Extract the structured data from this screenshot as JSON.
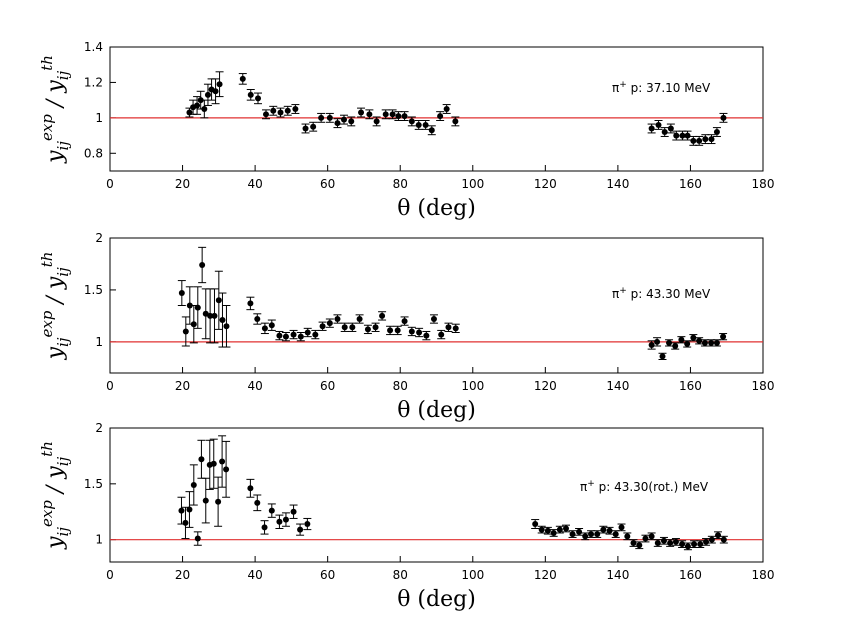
{
  "chart_data": [
    {
      "type": "scatter",
      "annotation": "π⁺ p: 37.10 MeV",
      "annotation_particle": "π",
      "annotation_charge": "+",
      "annotation_text": " p: 37.10 MeV",
      "xlabel_symbol": "θ",
      "xlabel_unit": "(deg)",
      "ylabel_num": "y",
      "ylabel_num_sup": "exp",
      "ylabel_den": "y",
      "ylabel_den_sup": "th",
      "ylabel_sub": "ij",
      "xlim": [
        0,
        180
      ],
      "ylim": [
        0.7,
        1.4
      ],
      "xticks": [
        0,
        20,
        40,
        60,
        80,
        100,
        120,
        140,
        160,
        180
      ],
      "yticks": [
        0.8,
        1,
        1.2,
        1.4
      ],
      "yticklabels": [
        "0.8",
        "1",
        "1.2",
        "1.4"
      ],
      "reference_line": 1.0,
      "reference_color": "#e03030",
      "points": [
        {
          "x": 21.9,
          "y": 1.03,
          "err": 0.025
        },
        {
          "x": 22.9,
          "y": 1.06,
          "err": 0.04
        },
        {
          "x": 24.0,
          "y": 1.07,
          "err": 0.05
        },
        {
          "x": 25.0,
          "y": 1.1,
          "err": 0.05
        },
        {
          "x": 26.0,
          "y": 1.05,
          "err": 0.05
        },
        {
          "x": 27.0,
          "y": 1.13,
          "err": 0.06
        },
        {
          "x": 28.0,
          "y": 1.16,
          "err": 0.06
        },
        {
          "x": 29.1,
          "y": 1.15,
          "err": 0.07
        },
        {
          "x": 30.2,
          "y": 1.19,
          "err": 0.07
        },
        {
          "x": 36.6,
          "y": 1.22,
          "err": 0.03
        },
        {
          "x": 38.8,
          "y": 1.13,
          "err": 0.03
        },
        {
          "x": 40.8,
          "y": 1.11,
          "err": 0.03
        },
        {
          "x": 43.0,
          "y": 1.02,
          "err": 0.025
        },
        {
          "x": 45.0,
          "y": 1.04,
          "err": 0.025
        },
        {
          "x": 47.0,
          "y": 1.03,
          "err": 0.025
        },
        {
          "x": 49.0,
          "y": 1.04,
          "err": 0.025
        },
        {
          "x": 51.1,
          "y": 1.05,
          "err": 0.025
        },
        {
          "x": 53.9,
          "y": 0.94,
          "err": 0.025
        },
        {
          "x": 56.0,
          "y": 0.95,
          "err": 0.025
        },
        {
          "x": 58.2,
          "y": 1.0,
          "err": 0.025
        },
        {
          "x": 60.6,
          "y": 1.0,
          "err": 0.025
        },
        {
          "x": 62.7,
          "y": 0.97,
          "err": 0.025
        },
        {
          "x": 64.5,
          "y": 0.99,
          "err": 0.025
        },
        {
          "x": 66.5,
          "y": 0.98,
          "err": 0.025
        },
        {
          "x": 69.2,
          "y": 1.03,
          "err": 0.025
        },
        {
          "x": 71.5,
          "y": 1.02,
          "err": 0.025
        },
        {
          "x": 73.5,
          "y": 0.98,
          "err": 0.025
        },
        {
          "x": 76.0,
          "y": 1.02,
          "err": 0.025
        },
        {
          "x": 77.9,
          "y": 1.02,
          "err": 0.025
        },
        {
          "x": 79.5,
          "y": 1.01,
          "err": 0.025
        },
        {
          "x": 81.2,
          "y": 1.01,
          "err": 0.025
        },
        {
          "x": 83.2,
          "y": 0.98,
          "err": 0.025
        },
        {
          "x": 85.1,
          "y": 0.96,
          "err": 0.025
        },
        {
          "x": 87.0,
          "y": 0.96,
          "err": 0.025
        },
        {
          "x": 88.7,
          "y": 0.93,
          "err": 0.025
        },
        {
          "x": 91.0,
          "y": 1.01,
          "err": 0.025
        },
        {
          "x": 92.8,
          "y": 1.05,
          "err": 0.025
        },
        {
          "x": 95.2,
          "y": 0.98,
          "err": 0.025
        },
        {
          "x": 149.3,
          "y": 0.94,
          "err": 0.025
        },
        {
          "x": 151.2,
          "y": 0.96,
          "err": 0.025
        },
        {
          "x": 152.9,
          "y": 0.92,
          "err": 0.025
        },
        {
          "x": 154.6,
          "y": 0.94,
          "err": 0.025
        },
        {
          "x": 156.1,
          "y": 0.9,
          "err": 0.025
        },
        {
          "x": 157.8,
          "y": 0.9,
          "err": 0.025
        },
        {
          "x": 159.2,
          "y": 0.9,
          "err": 0.025
        },
        {
          "x": 160.8,
          "y": 0.87,
          "err": 0.025
        },
        {
          "x": 162.4,
          "y": 0.87,
          "err": 0.025
        },
        {
          "x": 164.1,
          "y": 0.88,
          "err": 0.025
        },
        {
          "x": 165.8,
          "y": 0.88,
          "err": 0.025
        },
        {
          "x": 167.3,
          "y": 0.92,
          "err": 0.025
        },
        {
          "x": 169.1,
          "y": 1.0,
          "err": 0.025
        }
      ]
    },
    {
      "type": "scatter",
      "annotation": "π⁺ p: 43.30 MeV",
      "annotation_particle": "π",
      "annotation_charge": "+",
      "annotation_text": " p: 43.30 MeV",
      "xlabel_symbol": "θ",
      "xlabel_unit": "(deg)",
      "ylabel_num": "y",
      "ylabel_num_sup": "exp",
      "ylabel_den": "y",
      "ylabel_den_sup": "th",
      "ylabel_sub": "ij",
      "xlim": [
        0,
        180
      ],
      "ylim": [
        0.7,
        2.0
      ],
      "xticks": [
        0,
        20,
        40,
        60,
        80,
        100,
        120,
        140,
        160,
        180
      ],
      "yticks": [
        1,
        1.5,
        2
      ],
      "yticklabels": [
        "1",
        "1.5",
        "2"
      ],
      "reference_line": 1.0,
      "reference_color": "#e03030",
      "points": [
        {
          "x": 19.8,
          "y": 1.47,
          "err": 0.12
        },
        {
          "x": 20.9,
          "y": 1.1,
          "err": 0.14
        },
        {
          "x": 22.0,
          "y": 1.35,
          "err": 0.18
        },
        {
          "x": 23.1,
          "y": 1.17,
          "err": 0.18
        },
        {
          "x": 24.2,
          "y": 1.33,
          "err": 0.2
        },
        {
          "x": 25.4,
          "y": 1.74,
          "err": 0.17
        },
        {
          "x": 26.4,
          "y": 1.27,
          "err": 0.24
        },
        {
          "x": 27.6,
          "y": 1.25,
          "err": 0.26
        },
        {
          "x": 28.8,
          "y": 1.25,
          "err": 0.26
        },
        {
          "x": 30.0,
          "y": 1.4,
          "err": 0.28
        },
        {
          "x": 31.0,
          "y": 1.21,
          "err": 0.26
        },
        {
          "x": 32.1,
          "y": 1.15,
          "err": 0.2
        },
        {
          "x": 38.7,
          "y": 1.37,
          "err": 0.06
        },
        {
          "x": 40.6,
          "y": 1.22,
          "err": 0.05
        },
        {
          "x": 42.7,
          "y": 1.13,
          "err": 0.05
        },
        {
          "x": 44.6,
          "y": 1.16,
          "err": 0.05
        },
        {
          "x": 46.7,
          "y": 1.06,
          "err": 0.04
        },
        {
          "x": 48.5,
          "y": 1.05,
          "err": 0.04
        },
        {
          "x": 50.6,
          "y": 1.07,
          "err": 0.04
        },
        {
          "x": 52.6,
          "y": 1.05,
          "err": 0.04
        },
        {
          "x": 54.5,
          "y": 1.09,
          "err": 0.04
        },
        {
          "x": 56.6,
          "y": 1.07,
          "err": 0.04
        },
        {
          "x": 58.6,
          "y": 1.15,
          "err": 0.04
        },
        {
          "x": 60.6,
          "y": 1.18,
          "err": 0.04
        },
        {
          "x": 62.7,
          "y": 1.22,
          "err": 0.04
        },
        {
          "x": 64.7,
          "y": 1.14,
          "err": 0.04
        },
        {
          "x": 66.8,
          "y": 1.14,
          "err": 0.04
        },
        {
          "x": 68.8,
          "y": 1.22,
          "err": 0.04
        },
        {
          "x": 71.1,
          "y": 1.12,
          "err": 0.04
        },
        {
          "x": 73.2,
          "y": 1.14,
          "err": 0.04
        },
        {
          "x": 75.0,
          "y": 1.25,
          "err": 0.04
        },
        {
          "x": 77.2,
          "y": 1.11,
          "err": 0.04
        },
        {
          "x": 79.3,
          "y": 1.11,
          "err": 0.04
        },
        {
          "x": 81.2,
          "y": 1.2,
          "err": 0.04
        },
        {
          "x": 83.2,
          "y": 1.1,
          "err": 0.04
        },
        {
          "x": 85.2,
          "y": 1.09,
          "err": 0.04
        },
        {
          "x": 87.2,
          "y": 1.06,
          "err": 0.04
        },
        {
          "x": 89.3,
          "y": 1.22,
          "err": 0.04
        },
        {
          "x": 91.3,
          "y": 1.07,
          "err": 0.04
        },
        {
          "x": 93.3,
          "y": 1.14,
          "err": 0.04
        },
        {
          "x": 95.3,
          "y": 1.13,
          "err": 0.04
        },
        {
          "x": 149.3,
          "y": 0.97,
          "err": 0.04
        },
        {
          "x": 150.8,
          "y": 1.0,
          "err": 0.04
        },
        {
          "x": 152.3,
          "y": 0.86,
          "err": 0.03
        },
        {
          "x": 154.1,
          "y": 0.99,
          "err": 0.03
        },
        {
          "x": 155.8,
          "y": 0.96,
          "err": 0.03
        },
        {
          "x": 157.5,
          "y": 1.02,
          "err": 0.03
        },
        {
          "x": 159.1,
          "y": 0.98,
          "err": 0.03
        },
        {
          "x": 160.8,
          "y": 1.04,
          "err": 0.03
        },
        {
          "x": 162.4,
          "y": 1.01,
          "err": 0.03
        },
        {
          "x": 164.0,
          "y": 0.99,
          "err": 0.03
        },
        {
          "x": 165.7,
          "y": 0.99,
          "err": 0.03
        },
        {
          "x": 167.3,
          "y": 0.99,
          "err": 0.03
        },
        {
          "x": 169.0,
          "y": 1.05,
          "err": 0.03
        }
      ]
    },
    {
      "type": "scatter",
      "annotation": "π⁺ p: 43.30(rot.) MeV",
      "annotation_particle": "π",
      "annotation_charge": "+",
      "annotation_text": " p: 43.30(rot.) MeV",
      "xlabel_symbol": "θ",
      "xlabel_unit": "(deg)",
      "ylabel_num": "y",
      "ylabel_num_sup": "exp",
      "ylabel_den": "y",
      "ylabel_den_sup": "th",
      "ylabel_sub": "ij",
      "xlim": [
        0,
        180
      ],
      "ylim": [
        0.8,
        2.0
      ],
      "xticks": [
        0,
        20,
        40,
        60,
        80,
        100,
        120,
        140,
        160,
        180
      ],
      "yticks": [
        1,
        1.5,
        2
      ],
      "yticklabels": [
        "1",
        "1.5",
        "2"
      ],
      "reference_line": 1.0,
      "reference_color": "#e03030",
      "points": [
        {
          "x": 19.7,
          "y": 1.26,
          "err": 0.12
        },
        {
          "x": 20.8,
          "y": 1.15,
          "err": 0.14
        },
        {
          "x": 21.9,
          "y": 1.27,
          "err": 0.16
        },
        {
          "x": 23.1,
          "y": 1.49,
          "err": 0.18
        },
        {
          "x": 24.2,
          "y": 1.01,
          "err": 0.06
        },
        {
          "x": 25.2,
          "y": 1.72,
          "err": 0.17
        },
        {
          "x": 26.4,
          "y": 1.35,
          "err": 0.2
        },
        {
          "x": 27.5,
          "y": 1.67,
          "err": 0.22
        },
        {
          "x": 28.6,
          "y": 1.68,
          "err": 0.22
        },
        {
          "x": 29.8,
          "y": 1.34,
          "err": 0.22
        },
        {
          "x": 30.9,
          "y": 1.7,
          "err": 0.23
        },
        {
          "x": 32.0,
          "y": 1.63,
          "err": 0.25
        },
        {
          "x": 38.7,
          "y": 1.46,
          "err": 0.08
        },
        {
          "x": 40.6,
          "y": 1.33,
          "err": 0.07
        },
        {
          "x": 42.6,
          "y": 1.11,
          "err": 0.06
        },
        {
          "x": 44.6,
          "y": 1.26,
          "err": 0.06
        },
        {
          "x": 46.7,
          "y": 1.16,
          "err": 0.06
        },
        {
          "x": 48.5,
          "y": 1.18,
          "err": 0.06
        },
        {
          "x": 50.6,
          "y": 1.25,
          "err": 0.06
        },
        {
          "x": 52.4,
          "y": 1.09,
          "err": 0.05
        },
        {
          "x": 54.4,
          "y": 1.14,
          "err": 0.05
        },
        {
          "x": 117.2,
          "y": 1.14,
          "err": 0.04
        },
        {
          "x": 119.0,
          "y": 1.09,
          "err": 0.03
        },
        {
          "x": 120.7,
          "y": 1.08,
          "err": 0.03
        },
        {
          "x": 122.3,
          "y": 1.06,
          "err": 0.03
        },
        {
          "x": 124.0,
          "y": 1.09,
          "err": 0.03
        },
        {
          "x": 125.7,
          "y": 1.1,
          "err": 0.03
        },
        {
          "x": 127.5,
          "y": 1.05,
          "err": 0.03
        },
        {
          "x": 129.3,
          "y": 1.07,
          "err": 0.03
        },
        {
          "x": 131.0,
          "y": 1.03,
          "err": 0.03
        },
        {
          "x": 132.6,
          "y": 1.05,
          "err": 0.03
        },
        {
          "x": 134.3,
          "y": 1.05,
          "err": 0.03
        },
        {
          "x": 136.0,
          "y": 1.09,
          "err": 0.03
        },
        {
          "x": 137.7,
          "y": 1.08,
          "err": 0.03
        },
        {
          "x": 139.4,
          "y": 1.05,
          "err": 0.03
        },
        {
          "x": 141.0,
          "y": 1.11,
          "err": 0.03
        },
        {
          "x": 142.6,
          "y": 1.03,
          "err": 0.03
        },
        {
          "x": 144.3,
          "y": 0.97,
          "err": 0.03
        },
        {
          "x": 145.9,
          "y": 0.95,
          "err": 0.03
        },
        {
          "x": 147.6,
          "y": 1.01,
          "err": 0.03
        },
        {
          "x": 149.3,
          "y": 1.03,
          "err": 0.03
        },
        {
          "x": 151.0,
          "y": 0.97,
          "err": 0.03
        },
        {
          "x": 152.7,
          "y": 0.99,
          "err": 0.03
        },
        {
          "x": 154.4,
          "y": 0.97,
          "err": 0.03
        },
        {
          "x": 156.0,
          "y": 0.98,
          "err": 0.03
        },
        {
          "x": 157.7,
          "y": 0.96,
          "err": 0.03
        },
        {
          "x": 159.3,
          "y": 0.94,
          "err": 0.03
        },
        {
          "x": 161.0,
          "y": 0.96,
          "err": 0.03
        },
        {
          "x": 162.7,
          "y": 0.96,
          "err": 0.03
        },
        {
          "x": 164.3,
          "y": 0.98,
          "err": 0.03
        },
        {
          "x": 165.9,
          "y": 1.0,
          "err": 0.03
        },
        {
          "x": 167.6,
          "y": 1.04,
          "err": 0.03
        },
        {
          "x": 169.2,
          "y": 1.0,
          "err": 0.03
        }
      ]
    }
  ]
}
